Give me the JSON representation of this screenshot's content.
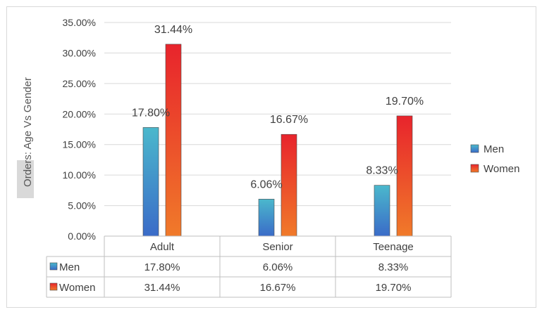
{
  "chart_data": {
    "type": "bar",
    "ylabel": "Orders: Age Vs Gender",
    "categories": [
      "Adult",
      "Senior",
      "Teenage"
    ],
    "series": [
      {
        "name": "Men",
        "values": [
          17.8,
          6.06,
          8.33
        ],
        "labels": [
          "17.80%",
          "6.06%",
          "8.33%"
        ],
        "color_top": "#4bb8cc",
        "color_bottom": "#3a6bc8",
        "swatch": "#2f96b5"
      },
      {
        "name": "Women",
        "values": [
          31.44,
          16.67,
          19.7
        ],
        "labels": [
          "31.44%",
          "16.67%",
          "19.70%"
        ],
        "color_top": "#e8242c",
        "color_bottom": "#f07a2a",
        "swatch": "#e2452e"
      }
    ],
    "yticks": [
      "0.00%",
      "5.00%",
      "10.00%",
      "15.00%",
      "20.00%",
      "25.00%",
      "30.00%",
      "35.00%"
    ],
    "ylim": [
      0,
      35
    ],
    "grid": true,
    "legend": "right",
    "data_table": true
  }
}
